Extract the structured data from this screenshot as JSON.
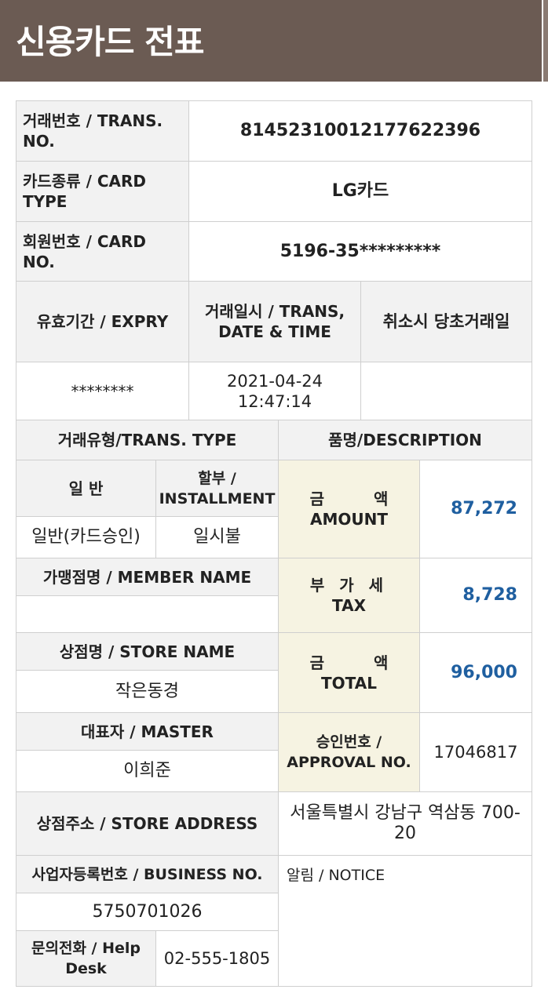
{
  "header": {
    "title": "신용카드 전표"
  },
  "rows": {
    "trans_no_label": "거래번호 / TRANS. NO.",
    "trans_no_value": "81452310012177622396",
    "card_type_label": "카드종류 / CARD TYPE",
    "card_type_value": "LG카드",
    "card_no_label": "회원번호 / CARD NO.",
    "card_no_value": "5196-35*********",
    "expiry_label": "유효기간 / EXPRY",
    "trans_date_label": "거래일시 / TRANS, DATE & TIME",
    "cancel_orig_label": "취소시 당초거래일",
    "expiry_value": "********",
    "trans_date_value": "2021-04-24 12:47:14",
    "cancel_orig_value": "",
    "trans_type_label": "거래유형/TRANS. TYPE",
    "description_label": "품명/DESCRIPTION",
    "general_label": "일 반",
    "installment_label": "할부 / INSTALLMENT",
    "general_value": "일반(카드승인)",
    "installment_value": "일시불",
    "amount_label_ko": "금 액",
    "amount_label_en": "AMOUNT",
    "amount_value": "87,272",
    "member_name_label": "가맹점명 / MEMBER NAME",
    "member_name_value": "",
    "tax_label_ko": "부 가 세",
    "tax_label_en": "TAX",
    "tax_value": "8,728",
    "store_name_label": "상점명 / STORE NAME",
    "store_name_value": "작은동경",
    "total_label_ko": "금 액",
    "total_label_en": "TOTAL",
    "total_value": "96,000",
    "master_label": "대표자 / MASTER",
    "master_value": "이희준",
    "approval_label": "승인번호 / APPROVAL NO.",
    "approval_value": "17046817",
    "store_address_label": "상점주소 / STORE ADDRESS",
    "store_address_value": "서울특별시 강남구 역삼동 700-20",
    "business_no_label": "사업자등록번호 / BUSINESS NO.",
    "business_no_value": "5750701026",
    "notice_label": "알림 / NOTICE",
    "help_desk_label": "문의전화 / Help Desk",
    "help_desk_value": "02-555-1805"
  },
  "colors": {
    "header_bg": "#6b5b53",
    "label_bg": "#f2f2f2",
    "amount_label_bg": "#f6f3e2",
    "amount_text": "#1f5fa0"
  }
}
